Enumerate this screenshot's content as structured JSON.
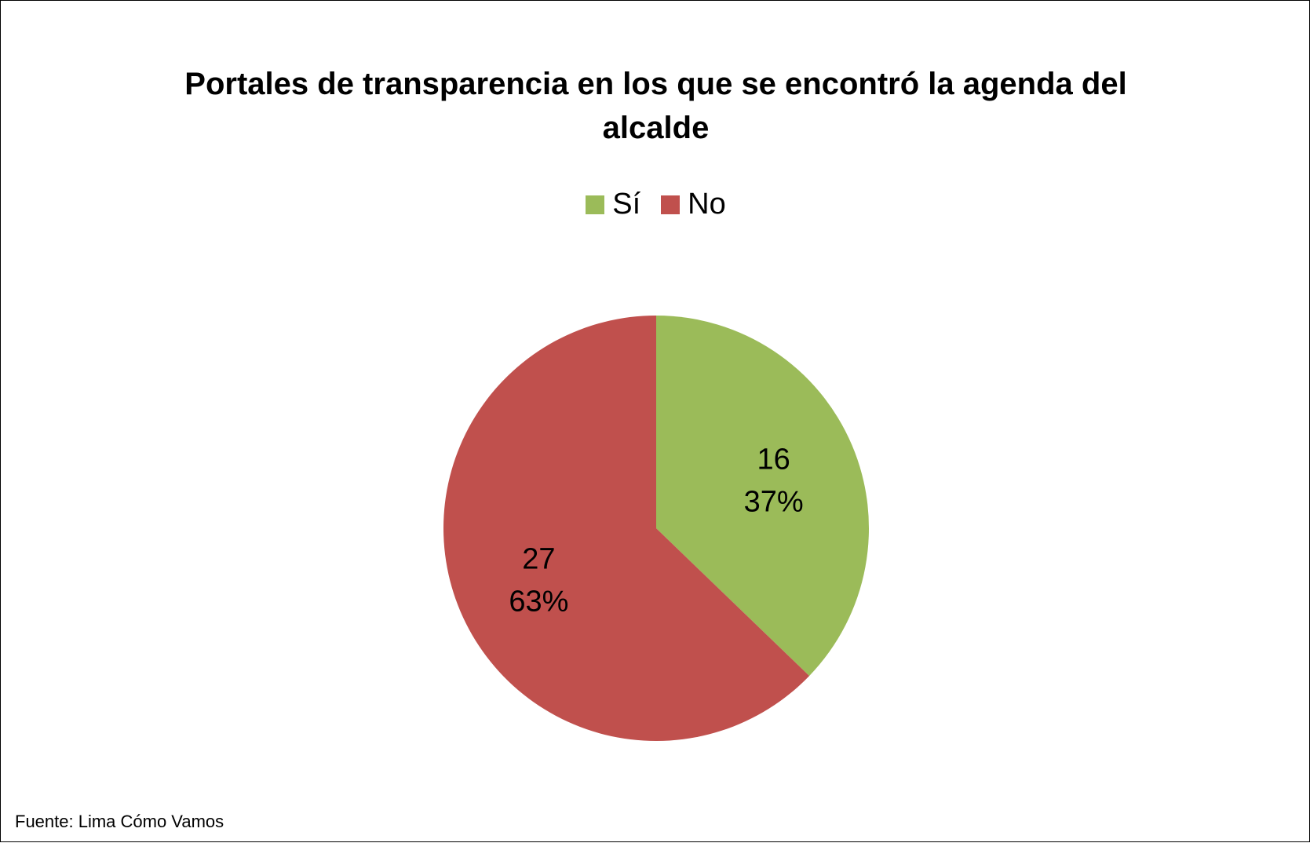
{
  "chart_data": {
    "type": "pie",
    "title": "Portales de transparencia  en los que se encontró la agenda del alcalde",
    "title_lines": [
      "Portales de transparencia  en los que se encontró la agenda del",
      "alcalde"
    ],
    "legend_position": "top",
    "categories": [
      "Sí",
      "No"
    ],
    "values": [
      16,
      27
    ],
    "percent_labels": [
      "37%",
      "63%"
    ],
    "colors": [
      "#9bbb59",
      "#c0504d"
    ],
    "start_angle_deg": 0,
    "direction": "clockwise"
  },
  "source": "Fuente: Lima Cómo Vamos"
}
